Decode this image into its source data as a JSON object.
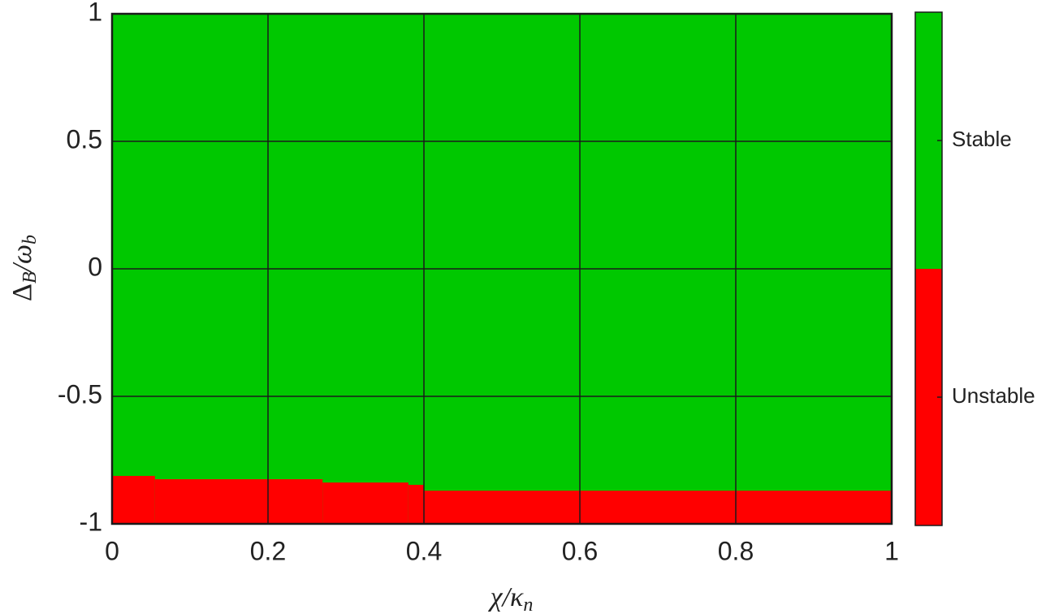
{
  "chart_data": {
    "type": "stability_map",
    "xlabel": [
      "χ/κ",
      "n"
    ],
    "ylabel": [
      "Δ",
      "B",
      "/ω",
      "b"
    ],
    "xlim": [
      0,
      1
    ],
    "ylim": [
      -1,
      1
    ],
    "xticks": [
      0,
      0.2,
      0.4,
      0.6,
      0.8,
      1
    ],
    "yticks": [
      -1,
      -0.5,
      0,
      0.5,
      1
    ],
    "grid": true,
    "x_edges": [
      0,
      0.055,
      0.27,
      0.38,
      0.4,
      1
    ],
    "boundary": [
      -0.812,
      -0.825,
      -0.838,
      -0.847,
      -0.87
    ],
    "regions": [
      {
        "name": "Stable",
        "color": "#00c800"
      },
      {
        "name": "Unstable",
        "color": "#ff0000"
      }
    ]
  }
}
